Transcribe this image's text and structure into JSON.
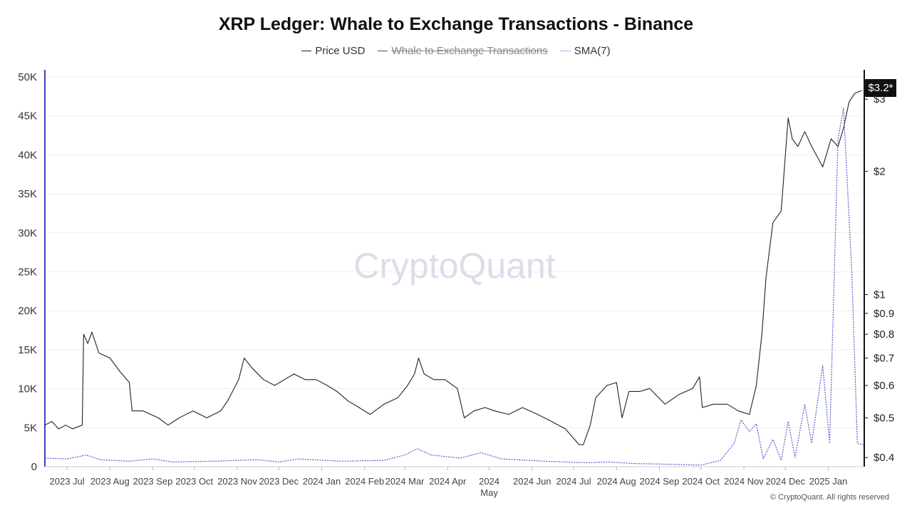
{
  "title": "XRP Ledger: Whale to Exchange Transactions - Binance",
  "legend": [
    {
      "label": "Price USD",
      "color": "#222222",
      "style": "solid",
      "enabled": true
    },
    {
      "label": "Whale to Exchange Transactions",
      "color": "#3b3bb8",
      "style": "solid",
      "enabled": false
    },
    {
      "label": "SMA(7)",
      "color": "#6a6ad8",
      "style": "dotted",
      "enabled": true
    }
  ],
  "watermark": "CryptoQuant",
  "copyright": "© CryptoQuant. All rights reserved",
  "price_badge": "$3.2*",
  "colors": {
    "price": "#222222",
    "sma": "#5b5bd0",
    "left_axis": "#4040c0",
    "grid": "#efefef",
    "watermark": "#dcdcea"
  },
  "chart_data": {
    "type": "line",
    "x_ticks": [
      {
        "label": "2023 Jul",
        "date": "2023-07-01"
      },
      {
        "label": "2023 Aug",
        "date": "2023-08-01"
      },
      {
        "label": "2023 Sep",
        "date": "2023-09-01"
      },
      {
        "label": "2023 Oct",
        "date": "2023-10-01"
      },
      {
        "label": "2023 Nov",
        "date": "2023-11-01"
      },
      {
        "label": "2023 Dec",
        "date": "2023-12-01"
      },
      {
        "label": "2024 Jan",
        "date": "2024-01-01"
      },
      {
        "label": "2024 Feb",
        "date": "2024-02-01"
      },
      {
        "label": "2024 Mar",
        "date": "2024-03-01"
      },
      {
        "label": "2024 Apr",
        "date": "2024-04-01"
      },
      {
        "label": "2024\nMay",
        "date": "2024-05-01"
      },
      {
        "label": "2024 Jun",
        "date": "2024-06-01"
      },
      {
        "label": "2024 Jul",
        "date": "2024-07-01"
      },
      {
        "label": "2024 Aug",
        "date": "2024-08-01"
      },
      {
        "label": "2024 Sep",
        "date": "2024-09-01"
      },
      {
        "label": "2024 Oct",
        "date": "2024-10-01"
      },
      {
        "label": "2024 Nov",
        "date": "2024-11-01"
      },
      {
        "label": "2024 Dec",
        "date": "2024-12-01"
      },
      {
        "label": "2025 Jan",
        "date": "2025-01-01"
      }
    ],
    "x_range": [
      "2023-06-15",
      "2025-01-27"
    ],
    "y_left": {
      "ticks": [
        0,
        5000,
        10000,
        15000,
        20000,
        25000,
        30000,
        35000,
        40000,
        45000,
        50000
      ],
      "tick_labels": [
        "0",
        "5K",
        "10K",
        "15K",
        "20K",
        "25K",
        "30K",
        "35K",
        "40K",
        "45K",
        "50K"
      ],
      "ylim": [
        0,
        50000
      ]
    },
    "y_right": {
      "scale": "log",
      "ticks": [
        0.4,
        0.5,
        0.6,
        0.7,
        0.8,
        0.9,
        1,
        2,
        3
      ],
      "tick_labels": [
        "$0.4",
        "$0.5",
        "$0.6",
        "$0.7",
        "$0.8",
        "$0.9",
        "$1",
        "$2",
        "$3"
      ],
      "ylim": [
        0.38,
        3.4
      ]
    },
    "series": [
      {
        "name": "Price USD",
        "axis": "right",
        "points": [
          [
            "2023-06-15",
            0.48
          ],
          [
            "2023-06-20",
            0.49
          ],
          [
            "2023-06-25",
            0.47
          ],
          [
            "2023-06-30",
            0.48
          ],
          [
            "2023-07-05",
            0.47
          ],
          [
            "2023-07-12",
            0.48
          ],
          [
            "2023-07-13",
            0.8
          ],
          [
            "2023-07-16",
            0.76
          ],
          [
            "2023-07-19",
            0.81
          ],
          [
            "2023-07-24",
            0.72
          ],
          [
            "2023-08-01",
            0.7
          ],
          [
            "2023-08-08",
            0.65
          ],
          [
            "2023-08-15",
            0.61
          ],
          [
            "2023-08-17",
            0.52
          ],
          [
            "2023-08-25",
            0.52
          ],
          [
            "2023-09-05",
            0.5
          ],
          [
            "2023-09-12",
            0.48
          ],
          [
            "2023-09-20",
            0.5
          ],
          [
            "2023-09-30",
            0.52
          ],
          [
            "2023-10-10",
            0.5
          ],
          [
            "2023-10-20",
            0.52
          ],
          [
            "2023-10-25",
            0.55
          ],
          [
            "2023-11-02",
            0.62
          ],
          [
            "2023-11-06",
            0.7
          ],
          [
            "2023-11-12",
            0.66
          ],
          [
            "2023-11-20",
            0.62
          ],
          [
            "2023-11-28",
            0.6
          ],
          [
            "2023-12-05",
            0.62
          ],
          [
            "2023-12-12",
            0.64
          ],
          [
            "2023-12-20",
            0.62
          ],
          [
            "2023-12-28",
            0.62
          ],
          [
            "2024-01-05",
            0.6
          ],
          [
            "2024-01-12",
            0.58
          ],
          [
            "2024-01-20",
            0.55
          ],
          [
            "2024-01-28",
            0.53
          ],
          [
            "2024-02-05",
            0.51
          ],
          [
            "2024-02-15",
            0.54
          ],
          [
            "2024-02-25",
            0.56
          ],
          [
            "2024-03-03",
            0.6
          ],
          [
            "2024-03-08",
            0.64
          ],
          [
            "2024-03-11",
            0.7
          ],
          [
            "2024-03-15",
            0.64
          ],
          [
            "2024-03-22",
            0.62
          ],
          [
            "2024-03-30",
            0.62
          ],
          [
            "2024-04-08",
            0.59
          ],
          [
            "2024-04-13",
            0.5
          ],
          [
            "2024-04-20",
            0.52
          ],
          [
            "2024-04-28",
            0.53
          ],
          [
            "2024-05-05",
            0.52
          ],
          [
            "2024-05-15",
            0.51
          ],
          [
            "2024-05-25",
            0.53
          ],
          [
            "2024-06-05",
            0.51
          ],
          [
            "2024-06-15",
            0.49
          ],
          [
            "2024-06-25",
            0.47
          ],
          [
            "2024-07-05",
            0.43
          ],
          [
            "2024-07-08",
            0.43
          ],
          [
            "2024-07-13",
            0.48
          ],
          [
            "2024-07-17",
            0.56
          ],
          [
            "2024-07-25",
            0.6
          ],
          [
            "2024-08-01",
            0.61
          ],
          [
            "2024-08-05",
            0.5
          ],
          [
            "2024-08-10",
            0.58
          ],
          [
            "2024-08-18",
            0.58
          ],
          [
            "2024-08-25",
            0.59
          ],
          [
            "2024-09-05",
            0.54
          ],
          [
            "2024-09-15",
            0.57
          ],
          [
            "2024-09-25",
            0.59
          ],
          [
            "2024-09-30",
            0.63
          ],
          [
            "2024-10-02",
            0.53
          ],
          [
            "2024-10-10",
            0.54
          ],
          [
            "2024-10-20",
            0.54
          ],
          [
            "2024-10-28",
            0.52
          ],
          [
            "2024-11-05",
            0.51
          ],
          [
            "2024-11-10",
            0.6
          ],
          [
            "2024-11-14",
            0.8
          ],
          [
            "2024-11-17",
            1.1
          ],
          [
            "2024-11-22",
            1.5
          ],
          [
            "2024-11-28",
            1.6
          ],
          [
            "2024-12-03",
            2.7
          ],
          [
            "2024-12-06",
            2.4
          ],
          [
            "2024-12-10",
            2.3
          ],
          [
            "2024-12-15",
            2.5
          ],
          [
            "2024-12-20",
            2.3
          ],
          [
            "2024-12-28",
            2.05
          ],
          [
            "2025-01-03",
            2.4
          ],
          [
            "2025-01-08",
            2.3
          ],
          [
            "2025-01-12",
            2.55
          ],
          [
            "2025-01-16",
            2.95
          ],
          [
            "2025-01-20",
            3.1
          ],
          [
            "2025-01-25",
            3.15
          ]
        ]
      },
      {
        "name": "SMA(7)",
        "axis": "left",
        "points": [
          [
            "2023-06-15",
            1100
          ],
          [
            "2023-07-01",
            1000
          ],
          [
            "2023-07-15",
            1500
          ],
          [
            "2023-07-25",
            900
          ],
          [
            "2023-08-15",
            700
          ],
          [
            "2023-09-01",
            1000
          ],
          [
            "2023-09-15",
            600
          ],
          [
            "2023-10-15",
            700
          ],
          [
            "2023-11-15",
            900
          ],
          [
            "2023-12-01",
            600
          ],
          [
            "2023-12-15",
            1000
          ],
          [
            "2024-01-15",
            700
          ],
          [
            "2024-02-15",
            800
          ],
          [
            "2024-03-01",
            1500
          ],
          [
            "2024-03-10",
            2300
          ],
          [
            "2024-03-20",
            1500
          ],
          [
            "2024-04-10",
            1100
          ],
          [
            "2024-04-25",
            1800
          ],
          [
            "2024-05-10",
            1000
          ],
          [
            "2024-06-10",
            700
          ],
          [
            "2024-07-10",
            500
          ],
          [
            "2024-07-25",
            600
          ],
          [
            "2024-08-15",
            400
          ],
          [
            "2024-09-10",
            300
          ],
          [
            "2024-10-01",
            200
          ],
          [
            "2024-10-15",
            800
          ],
          [
            "2024-10-25",
            3000
          ],
          [
            "2024-10-30",
            6000
          ],
          [
            "2024-11-05",
            4500
          ],
          [
            "2024-11-10",
            5500
          ],
          [
            "2024-11-15",
            1000
          ],
          [
            "2024-11-22",
            3500
          ],
          [
            "2024-11-28",
            800
          ],
          [
            "2024-12-03",
            5800
          ],
          [
            "2024-12-08",
            1200
          ],
          [
            "2024-12-15",
            8000
          ],
          [
            "2024-12-20",
            3000
          ],
          [
            "2024-12-28",
            13000
          ],
          [
            "2025-01-02",
            3000
          ],
          [
            "2025-01-08",
            42000
          ],
          [
            "2025-01-12",
            46000
          ],
          [
            "2025-01-18",
            25000
          ],
          [
            "2025-01-22",
            3000
          ],
          [
            "2025-01-27",
            2800
          ]
        ]
      }
    ],
    "grid": true,
    "legend_position": "top-center"
  }
}
